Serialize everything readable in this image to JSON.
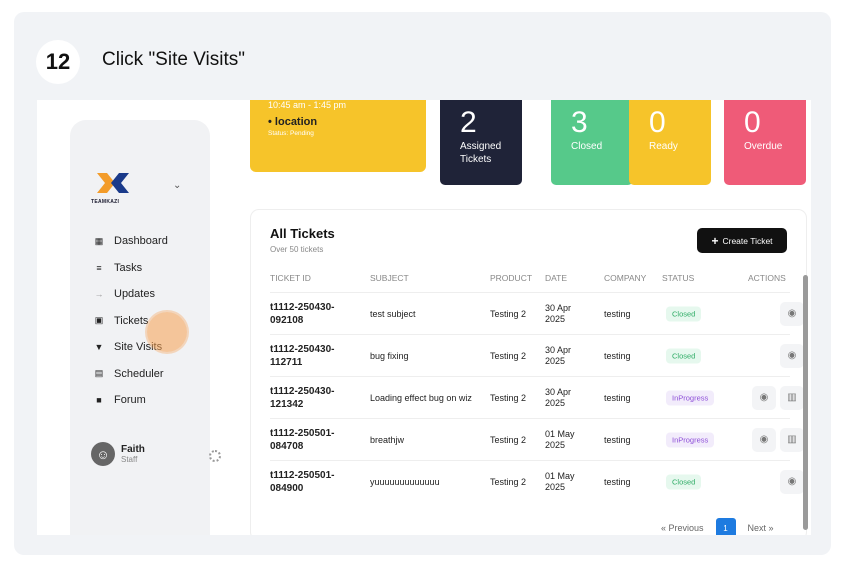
{
  "step": {
    "number": "12",
    "instruction": "Click \"Site Visits\""
  },
  "sidebar": {
    "logo_text": "TEAMKAZI",
    "items": [
      {
        "label": "Dashboard",
        "icon": "dashboard-icon"
      },
      {
        "label": "Tasks",
        "icon": "tasks-icon"
      },
      {
        "label": "Updates",
        "icon": "updates-icon"
      },
      {
        "label": "Tickets",
        "icon": "ticket-icon"
      },
      {
        "label": "Site Visits",
        "icon": "location-pin-icon"
      },
      {
        "label": "Scheduler",
        "icon": "calendar-icon"
      },
      {
        "label": "Forum",
        "icon": "chat-icon"
      }
    ],
    "user": {
      "name": "Faith",
      "role": "Staff",
      "avatar_icon": "user-avatar-icon"
    }
  },
  "event": {
    "time": "10:45 am - 1:45 pm",
    "location": "location",
    "status": "Status: Pending"
  },
  "stats": [
    {
      "value": "2",
      "label": "Assigned Tickets",
      "color": "#1f2338"
    },
    {
      "value": "3",
      "label": "Closed",
      "color": "#56c98a"
    },
    {
      "value": "0",
      "label": "Ready",
      "color": "#f6c42a"
    },
    {
      "value": "0",
      "label": "Overdue",
      "color": "#ef5b78"
    }
  ],
  "tickets": {
    "title": "All Tickets",
    "subtitle": "Over 50 tickets",
    "create_label": "Create Ticket",
    "columns": [
      "TICKET ID",
      "SUBJECT",
      "PRODUCT",
      "DATE",
      "COMPANY",
      "STATUS",
      "ACTIONS"
    ],
    "rows": [
      {
        "id": "t1112-250430-092108",
        "subject": "test subject",
        "product": "Testing 2",
        "date": "30 Apr 2025",
        "company": "testing",
        "status": "Closed",
        "actions": [
          "view"
        ]
      },
      {
        "id": "t1112-250430-112711",
        "subject": "bug fixing",
        "product": "Testing 2",
        "date": "30 Apr 2025",
        "company": "testing",
        "status": "Closed",
        "actions": [
          "view"
        ]
      },
      {
        "id": "t1112-250430-121342",
        "subject": "Loading effect bug on wiz",
        "product": "Testing 2",
        "date": "30 Apr 2025",
        "company": "testing",
        "status": "InProgress",
        "actions": [
          "view",
          "delete"
        ]
      },
      {
        "id": "t1112-250501-084708",
        "subject": "breathjw",
        "product": "Testing 2",
        "date": "01 May 2025",
        "company": "testing",
        "status": "InProgress",
        "actions": [
          "view",
          "delete"
        ]
      },
      {
        "id": "t1112-250501-084900",
        "subject": "yuuuuuuuuuuuuu",
        "product": "Testing 2",
        "date": "01 May 2025",
        "company": "testing",
        "status": "Closed",
        "actions": [
          "view"
        ]
      }
    ],
    "pagination": {
      "prev": "« Previous",
      "current": "1",
      "next": "Next »"
    }
  }
}
